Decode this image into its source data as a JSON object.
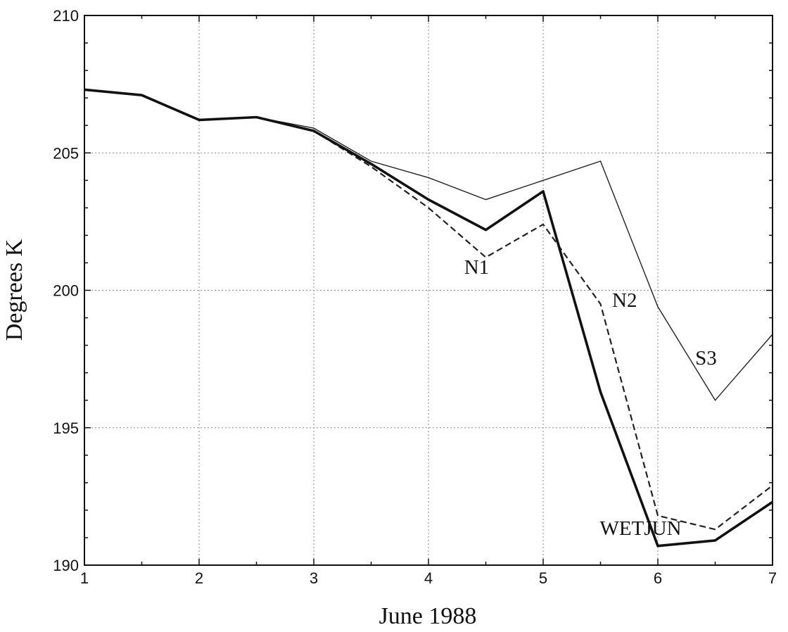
{
  "chart_data": {
    "type": "line",
    "title": "",
    "xlabel": "June 1988",
    "ylabel": "Degrees K",
    "xlim": [
      1,
      7
    ],
    "ylim": [
      190,
      210
    ],
    "x_ticks": [
      1,
      2,
      3,
      4,
      5,
      6,
      7
    ],
    "y_ticks": [
      190,
      195,
      200,
      205,
      210
    ],
    "grid": true,
    "legend": "none (series labeled directly on plot)",
    "series": [
      {
        "name": "S3",
        "style": "thin-solid",
        "x": [
          1,
          1.5,
          2,
          2.5,
          3,
          3.5,
          4,
          4.5,
          5,
          5.5,
          6,
          6.5,
          7
        ],
        "y": [
          207.3,
          207.1,
          206.2,
          206.3,
          205.9,
          204.7,
          204.1,
          203.3,
          204.0,
          204.7,
          199.4,
          196.0,
          198.4
        ]
      },
      {
        "name": "N1",
        "style": "thick-solid",
        "x": [
          1,
          1.5,
          2,
          2.5,
          3,
          3.5,
          4,
          4.5,
          5,
          5.5,
          6,
          6.5,
          7
        ],
        "y": [
          207.3,
          207.1,
          206.2,
          206.3,
          205.8,
          204.6,
          203.3,
          202.2,
          203.6,
          196.3,
          190.7,
          190.9,
          192.3
        ]
      },
      {
        "name": "N2",
        "style": "dashed",
        "x": [
          1,
          1.5,
          2,
          2.5,
          3,
          3.5,
          4,
          4.5,
          5,
          5.5,
          6,
          6.5,
          7
        ],
        "y": [
          207.3,
          207.1,
          206.2,
          206.3,
          205.8,
          204.5,
          203.0,
          201.2,
          202.4,
          199.5,
          191.8,
          191.3,
          192.9
        ]
      }
    ],
    "annotations": [
      {
        "text": "N1",
        "x": 4.42,
        "y": 200.6
      },
      {
        "text": "N2",
        "x": 5.71,
        "y": 199.4
      },
      {
        "text": "S3",
        "x": 6.42,
        "y": 197.3
      },
      {
        "text": "WETJUN",
        "x": 5.85,
        "y": 191.1
      }
    ]
  }
}
